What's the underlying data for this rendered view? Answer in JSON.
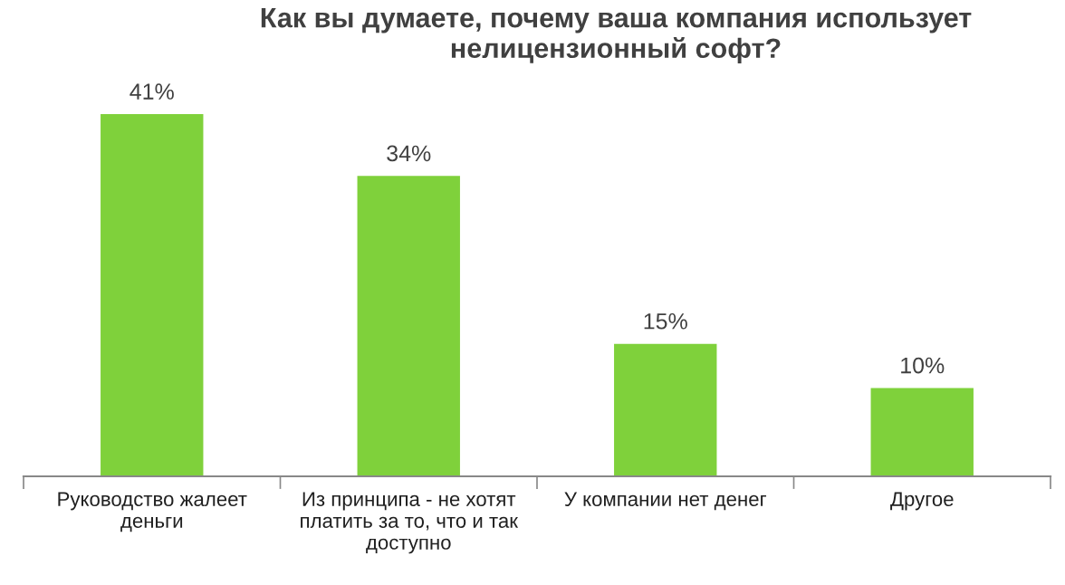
{
  "chart_data": {
    "type": "bar",
    "title": "Как вы думаете, почему ваша компания использует\nнелицензионный софт?",
    "categories": [
      "Руководство жалеет\nденьги",
      "Из принципа - не хотят\nплатить за то, что и так\nдоступно",
      "У компании нет денег",
      "Другое"
    ],
    "values": [
      41,
      34,
      15,
      10
    ],
    "value_labels": [
      "41%",
      "34%",
      "15%",
      "10%"
    ],
    "color": "#7fd13b",
    "grid": false,
    "legend": false
  }
}
